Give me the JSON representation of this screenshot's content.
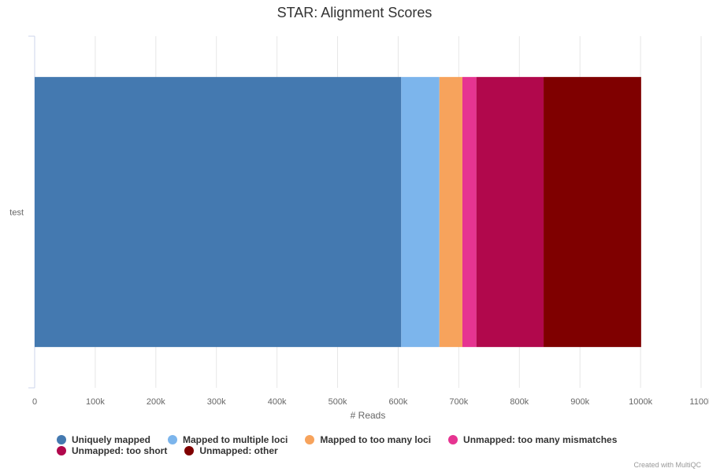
{
  "chart_data": {
    "type": "bar",
    "orientation": "horizontal",
    "stacked": true,
    "title": "STAR: Alignment Scores",
    "xlabel": "# Reads",
    "ylabel": "",
    "categories": [
      "test"
    ],
    "xlim": [
      0,
      1100000
    ],
    "x_ticks": [
      0,
      100000,
      200000,
      300000,
      400000,
      500000,
      600000,
      700000,
      800000,
      900000,
      1000000,
      1100000
    ],
    "x_tick_labels": [
      "0",
      "100k",
      "200k",
      "300k",
      "400k",
      "500k",
      "600k",
      "700k",
      "800k",
      "900k",
      "1000k",
      "1100k"
    ],
    "grid": true,
    "legend_position": "bottom",
    "series": [
      {
        "name": "Uniquely mapped",
        "color": "#4479b0",
        "values": [
          605000
        ]
      },
      {
        "name": "Mapped to multiple loci",
        "color": "#7cb5ec",
        "values": [
          63000
        ]
      },
      {
        "name": "Mapped to too many loci",
        "color": "#f7a35c",
        "values": [
          38000
        ]
      },
      {
        "name": "Unmapped: too many mismatches",
        "color": "#e63491",
        "values": [
          23000
        ]
      },
      {
        "name": "Unmapped: too short",
        "color": "#b1084c",
        "values": [
          111000
        ]
      },
      {
        "name": "Unmapped: other",
        "color": "#7f0000",
        "values": [
          161000
        ]
      }
    ]
  },
  "credit": "Created with MultiQC"
}
